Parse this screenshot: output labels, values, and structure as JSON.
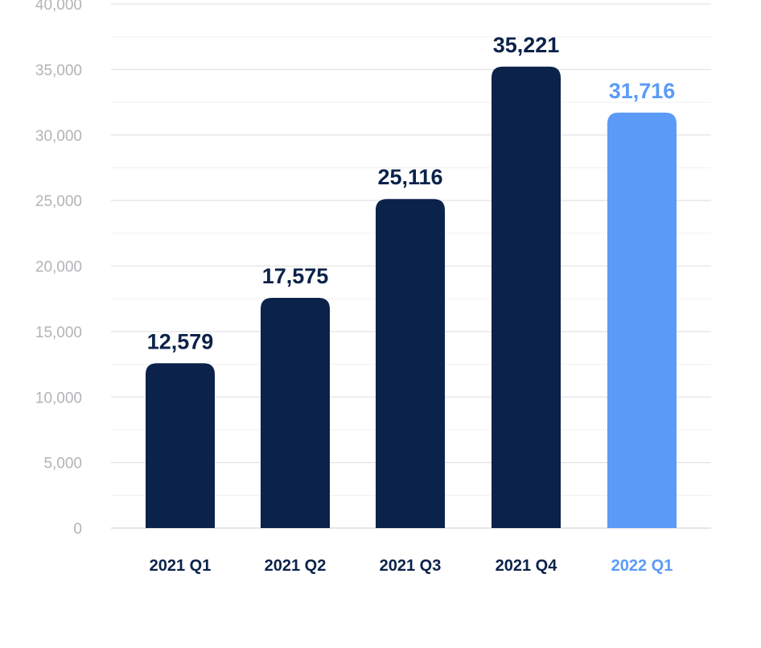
{
  "chart_data": {
    "type": "bar",
    "categories": [
      "2021 Q1",
      "2021 Q2",
      "2021 Q3",
      "2021 Q4",
      "2022 Q1"
    ],
    "values": [
      12579,
      17575,
      25116,
      35221,
      31716
    ],
    "value_labels": [
      "12,579",
      "17,575",
      "25,116",
      "35,221",
      "31,716"
    ],
    "ylim": [
      0,
      40000
    ],
    "yticks": [
      0,
      5000,
      10000,
      15000,
      20000,
      25000,
      30000,
      35000,
      40000
    ],
    "ytick_labels": [
      "0",
      "5,000",
      "10,000",
      "15,000",
      "20,000",
      "25,000",
      "30,000",
      "35,000",
      "40,000"
    ],
    "grid": true,
    "legend": "none",
    "title": "",
    "xlabel": "",
    "ylabel": "",
    "colors": {
      "bar": "#0b224a",
      "highlight_bar": "#5b9bf7",
      "highlight_index": 4,
      "grid": "#e3e3e6",
      "tick_text": "#b3b3b8"
    }
  }
}
